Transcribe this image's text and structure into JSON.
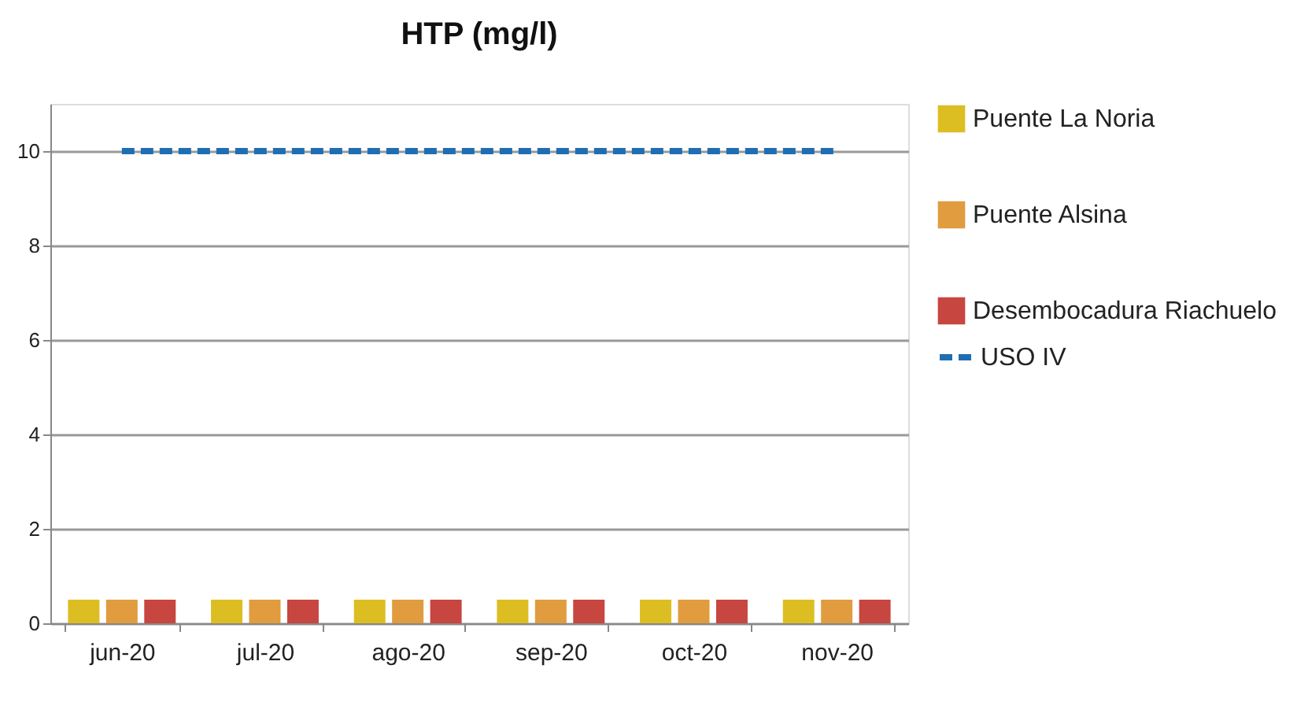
{
  "chart_data": {
    "type": "bar",
    "title": "HTP (mg/l)",
    "categories": [
      "jun-20",
      "jul-20",
      "ago-20",
      "sep-20",
      "oct-20",
      "nov-20"
    ],
    "series": [
      {
        "name": "Puente La Noria",
        "color": "#dcbe22",
        "values": [
          0.5,
          0.5,
          0.5,
          0.5,
          0.5,
          0.5
        ]
      },
      {
        "name": "Puente Alsina",
        "color": "#e09c3e",
        "values": [
          0.5,
          0.5,
          0.5,
          0.5,
          0.5,
          0.5
        ]
      },
      {
        "name": "Desembocadura Riachuelo",
        "color": "#c84640",
        "values": [
          0.5,
          0.5,
          0.5,
          0.5,
          0.5,
          0.5
        ]
      },
      {
        "name": "USO IV",
        "color": "#1f6eb4",
        "type": "line",
        "line_style": "dashed",
        "values": [
          10,
          10,
          10,
          10,
          10,
          10
        ]
      }
    ],
    "ylim": [
      0,
      11
    ],
    "yticks": [
      0,
      2,
      4,
      6,
      8,
      10
    ],
    "grid": "y",
    "legend": "right"
  }
}
